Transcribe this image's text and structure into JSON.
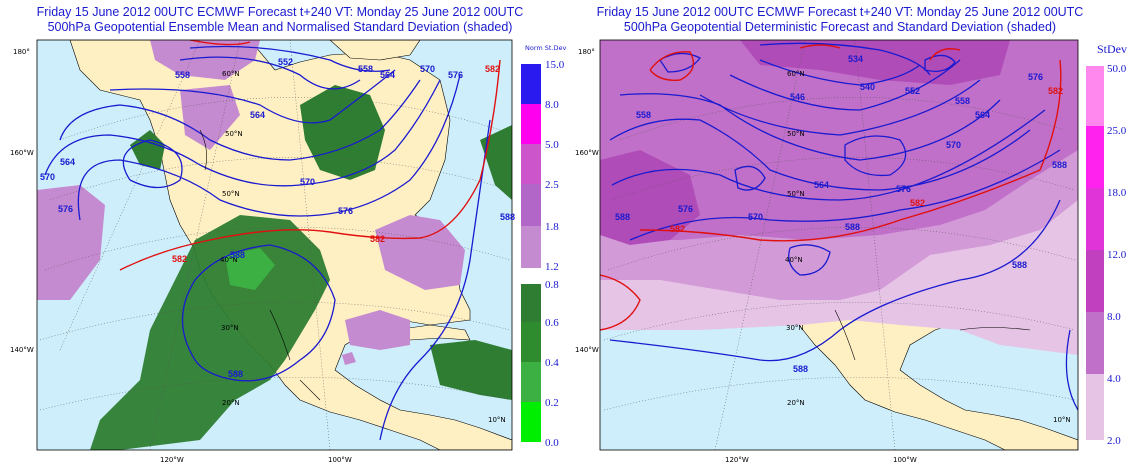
{
  "left_panel": {
    "title_line1": "Friday 15 June 2012 00UTC ECMWF Forecast t+240  VT: Monday 25 June 2012 00UTC",
    "title_line2": "500hPa Geopotential Ensemble Mean and Normalised Standard Deviation (shaded)",
    "legend_header": "Norm St.Dev",
    "legend_upper": [
      {
        "label": "15.0",
        "color": "#2a1af0"
      },
      {
        "label": "8.0",
        "color": "#ff00ee"
      },
      {
        "label": "5.0",
        "color": "#cc55cc"
      },
      {
        "label": "2.5",
        "color": "#b266c8"
      },
      {
        "label": "1.8",
        "color": "#c58bd0"
      },
      {
        "label": "1.2",
        "color": "#c58bd0"
      }
    ],
    "legend_lower": [
      {
        "label": "0.8",
        "color": "#2e7d32"
      },
      {
        "label": "0.6",
        "color": "#2e8b2e"
      },
      {
        "label": "0.4",
        "color": "#3cb043"
      },
      {
        "label": "0.2",
        "color": "#22cc22"
      },
      {
        "label": "0.0",
        "color": "#00ee00"
      }
    ],
    "lat_lon_labels": [
      "180°",
      "160°W",
      "140°W",
      "120°W",
      "100°W",
      "60°N",
      "50°N",
      "40°N",
      "30°N",
      "20°N",
      "10°N"
    ],
    "contour_labels": [
      "552",
      "558",
      "564",
      "570",
      "576",
      "582",
      "588"
    ]
  },
  "right_panel": {
    "title_line1": "Friday 15 June 2012 00UTC ECMWF Forecast t+240  VT: Monday 25 June 2012 00UTC",
    "title_line2": "500hPa Geopotential Deterministic Forecast and Standard Deviation (shaded)",
    "legend_header": "StDev",
    "legend": [
      {
        "label": "50.0",
        "color": "#ff88ee"
      },
      {
        "label": "25.0",
        "color": "#ff22ee"
      },
      {
        "label": "18.0",
        "color": "#e033d8"
      },
      {
        "label": "12.0",
        "color": "#c040c0"
      },
      {
        "label": "8.0",
        "color": "#c070c8"
      },
      {
        "label": "4.0",
        "color": "#d39ad8"
      },
      {
        "label": "2.0",
        "color": "#e6c4e6"
      }
    ],
    "lat_lon_labels": [
      "180°",
      "160°W",
      "140°W",
      "120°W",
      "100°W",
      "60°N",
      "50°N",
      "40°N",
      "30°N",
      "20°N",
      "10°N"
    ],
    "contour_labels": [
      "534",
      "540",
      "546",
      "552",
      "558",
      "564",
      "570",
      "576",
      "582",
      "588"
    ]
  },
  "colors": {
    "ocean": "#cdeefa",
    "land": "#fff0c4",
    "title": "#1a1ad0",
    "contour_blue": "#1a1ad0",
    "contour_red": "#e01010"
  }
}
